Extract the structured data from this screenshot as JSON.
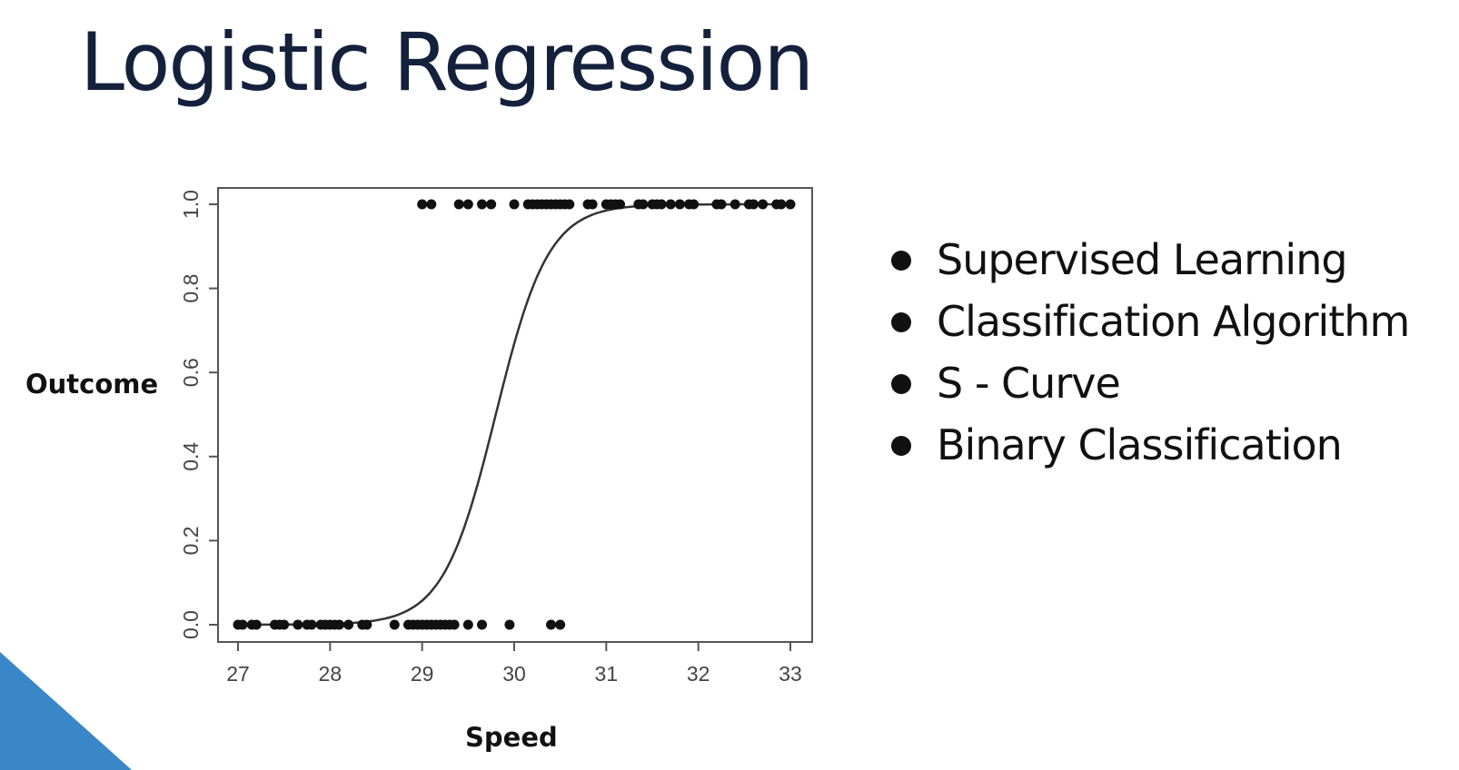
{
  "slide": {
    "title": "Logistic Regression",
    "bullets": [
      "Supervised Learning",
      "Classification Algorithm",
      "S - Curve",
      "Binary Classification"
    ],
    "accent_color": "#3a87c8"
  },
  "chart_data": {
    "type": "scatter",
    "title": "",
    "xlabel": "Speed",
    "ylabel": "Outcome",
    "xlim": [
      27,
      33
    ],
    "ylim": [
      0,
      1
    ],
    "x_ticks": [
      "27",
      "28",
      "29",
      "30",
      "31",
      "32",
      "33"
    ],
    "y_ticks": [
      "0.0",
      "0.2",
      "0.4",
      "0.6",
      "0.8",
      "1.0"
    ],
    "grid": false,
    "legend": "none",
    "series": [
      {
        "type": "scatter",
        "points": [
          {
            "x": 27.0,
            "y": 0
          },
          {
            "x": 27.05,
            "y": 0
          },
          {
            "x": 27.15,
            "y": 0
          },
          {
            "x": 27.2,
            "y": 0
          },
          {
            "x": 27.4,
            "y": 0
          },
          {
            "x": 27.45,
            "y": 0
          },
          {
            "x": 27.5,
            "y": 0
          },
          {
            "x": 27.65,
            "y": 0
          },
          {
            "x": 27.75,
            "y": 0
          },
          {
            "x": 27.8,
            "y": 0
          },
          {
            "x": 27.9,
            "y": 0
          },
          {
            "x": 27.95,
            "y": 0
          },
          {
            "x": 28.0,
            "y": 0
          },
          {
            "x": 28.05,
            "y": 0
          },
          {
            "x": 28.1,
            "y": 0
          },
          {
            "x": 28.2,
            "y": 0
          },
          {
            "x": 28.35,
            "y": 0
          },
          {
            "x": 28.4,
            "y": 0
          },
          {
            "x": 28.7,
            "y": 0
          },
          {
            "x": 28.85,
            "y": 0
          },
          {
            "x": 28.9,
            "y": 0
          },
          {
            "x": 28.95,
            "y": 0
          },
          {
            "x": 29.0,
            "y": 0
          },
          {
            "x": 29.05,
            "y": 0
          },
          {
            "x": 29.1,
            "y": 0
          },
          {
            "x": 29.15,
            "y": 0
          },
          {
            "x": 29.2,
            "y": 0
          },
          {
            "x": 29.25,
            "y": 0
          },
          {
            "x": 29.3,
            "y": 0
          },
          {
            "x": 29.35,
            "y": 0
          },
          {
            "x": 29.5,
            "y": 0
          },
          {
            "x": 29.65,
            "y": 0
          },
          {
            "x": 29.95,
            "y": 0
          },
          {
            "x": 30.4,
            "y": 0
          },
          {
            "x": 30.5,
            "y": 0
          },
          {
            "x": 29.0,
            "y": 1
          },
          {
            "x": 29.1,
            "y": 1
          },
          {
            "x": 29.4,
            "y": 1
          },
          {
            "x": 29.5,
            "y": 1
          },
          {
            "x": 29.65,
            "y": 1
          },
          {
            "x": 29.75,
            "y": 1
          },
          {
            "x": 30.0,
            "y": 1
          },
          {
            "x": 30.15,
            "y": 1
          },
          {
            "x": 30.2,
            "y": 1
          },
          {
            "x": 30.25,
            "y": 1
          },
          {
            "x": 30.3,
            "y": 1
          },
          {
            "x": 30.35,
            "y": 1
          },
          {
            "x": 30.4,
            "y": 1
          },
          {
            "x": 30.45,
            "y": 1
          },
          {
            "x": 30.5,
            "y": 1
          },
          {
            "x": 30.55,
            "y": 1
          },
          {
            "x": 30.6,
            "y": 1
          },
          {
            "x": 30.8,
            "y": 1
          },
          {
            "x": 30.85,
            "y": 1
          },
          {
            "x": 31.0,
            "y": 1
          },
          {
            "x": 31.05,
            "y": 1
          },
          {
            "x": 31.1,
            "y": 1
          },
          {
            "x": 31.15,
            "y": 1
          },
          {
            "x": 31.35,
            "y": 1
          },
          {
            "x": 31.4,
            "y": 1
          },
          {
            "x": 31.5,
            "y": 1
          },
          {
            "x": 31.55,
            "y": 1
          },
          {
            "x": 31.6,
            "y": 1
          },
          {
            "x": 31.7,
            "y": 1
          },
          {
            "x": 31.8,
            "y": 1
          },
          {
            "x": 31.9,
            "y": 1
          },
          {
            "x": 31.95,
            "y": 1
          },
          {
            "x": 32.2,
            "y": 1
          },
          {
            "x": 32.25,
            "y": 1
          },
          {
            "x": 32.4,
            "y": 1
          },
          {
            "x": 32.55,
            "y": 1
          },
          {
            "x": 32.6,
            "y": 1
          },
          {
            "x": 32.7,
            "y": 1
          },
          {
            "x": 32.85,
            "y": 1
          },
          {
            "x": 32.9,
            "y": 1
          },
          {
            "x": 33.0,
            "y": 1
          }
        ]
      },
      {
        "type": "line",
        "curve": "logistic",
        "midpoint": 29.8,
        "steepness": 3.5
      }
    ]
  }
}
